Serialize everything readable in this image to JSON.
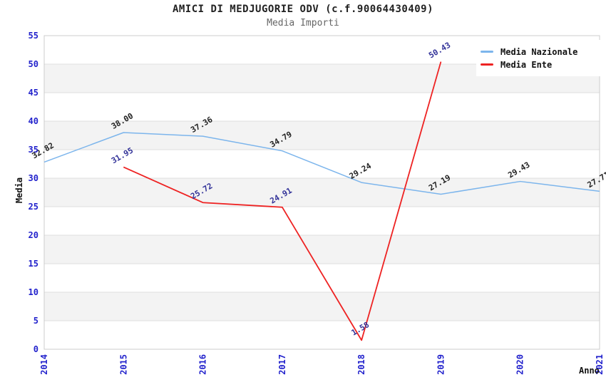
{
  "chart_data": {
    "type": "line",
    "title": "AMICI DI MEDJUGORIE ODV (c.f.90064430409)",
    "subtitle": "Media Importi",
    "xlabel": "Anno",
    "ylabel": "Media",
    "x": [
      "2014",
      "2015",
      "2016",
      "2017",
      "2018",
      "2019",
      "2020",
      "2021"
    ],
    "ylim": [
      0,
      55
    ],
    "ytick_step": 5,
    "grid": true,
    "legend_position": "top-right",
    "band_color": "#f3f3f3",
    "gridline_color": "#dfdfdf",
    "border_color": "#cccccc",
    "tick_label_color": "#2222cc",
    "series": [
      {
        "name": "Media Nazionale",
        "color": "#7cb5ec",
        "label_color": "#222222",
        "values": [
          32.82,
          38.0,
          37.36,
          34.79,
          29.24,
          27.19,
          29.43,
          27.71
        ]
      },
      {
        "name": "Media Ente",
        "color": "#ee2222",
        "label_color": "#333399",
        "values": [
          null,
          31.95,
          25.72,
          24.91,
          1.58,
          50.43,
          null,
          null
        ]
      }
    ]
  }
}
